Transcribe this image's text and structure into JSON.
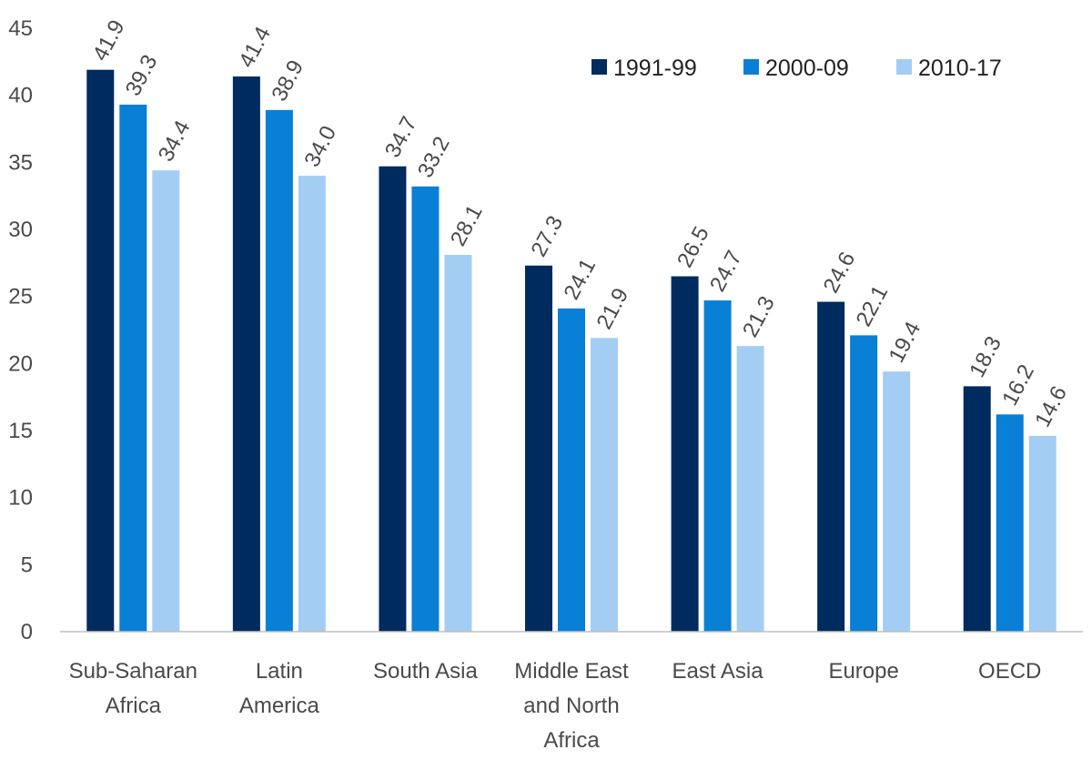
{
  "chart_data": {
    "type": "bar",
    "title": "",
    "xlabel": "",
    "ylabel": "",
    "ylim": [
      0,
      45
    ],
    "y_ticks": [
      0,
      5,
      10,
      15,
      20,
      25,
      30,
      35,
      40,
      45
    ],
    "grid": false,
    "legend_position": "top-right",
    "categories": [
      [
        "Sub-Saharan",
        "Africa"
      ],
      [
        "Latin",
        "America"
      ],
      [
        "South Asia"
      ],
      [
        "Middle East",
        "and North",
        "Africa"
      ],
      [
        "East Asia"
      ],
      [
        "Europe"
      ],
      [
        "OECD"
      ]
    ],
    "series": [
      {
        "name": "1991-99",
        "color": "#002b5e",
        "values": [
          41.9,
          41.4,
          34.7,
          27.3,
          26.5,
          24.6,
          18.3
        ]
      },
      {
        "name": "2000-09",
        "color": "#0a7fd6",
        "values": [
          39.3,
          38.9,
          33.2,
          24.1,
          24.7,
          22.1,
          16.2
        ]
      },
      {
        "name": "2010-17",
        "color": "#a4cdf4",
        "values": [
          34.4,
          34.0,
          28.1,
          21.9,
          21.3,
          19.4,
          14.6
        ]
      }
    ]
  }
}
